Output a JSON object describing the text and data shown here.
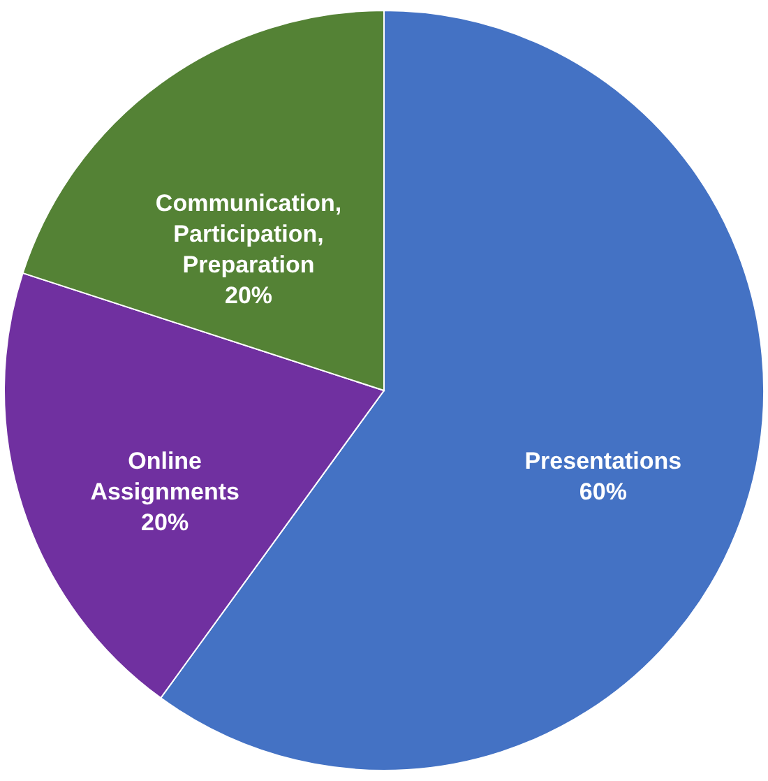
{
  "chart_data": {
    "type": "pie",
    "categories": [
      "Presentations",
      "Online Assignments",
      "Communication, Participation, Preparation"
    ],
    "values": [
      60,
      20,
      20
    ],
    "colors": [
      "#4472c4",
      "#7030a0",
      "#548235"
    ],
    "value_labels": [
      "60%",
      "20%",
      "20%"
    ]
  }
}
